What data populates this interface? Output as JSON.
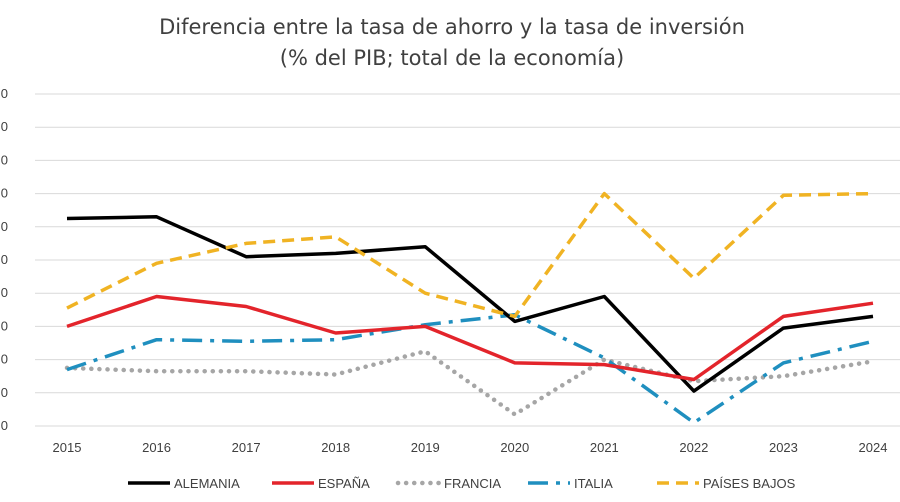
{
  "chart_data": {
    "type": "line",
    "title": "Diferencia entre la tasa de ahorro y la tasa de inversión",
    "subtitle": "(% del PIB; total de la economía)",
    "xlabel": "",
    "ylabel": "",
    "categories": [
      "2015",
      "2016",
      "2017",
      "2018",
      "2019",
      "2020",
      "2021",
      "2022",
      "2023",
      "2024"
    ],
    "y_tick_labels": [
      "0",
      "0",
      "0",
      "0",
      "0",
      "0",
      "0",
      "0",
      "0",
      "0",
      "0"
    ],
    "ylim": [
      -4,
      16
    ],
    "grid": true,
    "legend_position": "bottom",
    "series": [
      {
        "name": "ALEMANIA",
        "color": "#000000",
        "style": "solid",
        "values": [
          8.5,
          8.6,
          6.2,
          6.4,
          6.8,
          2.3,
          3.8,
          -1.9,
          1.9,
          2.6
        ]
      },
      {
        "name": "ESPAÑA",
        "color": "#e3242b",
        "style": "solid",
        "values": [
          2.0,
          3.8,
          3.2,
          1.6,
          2.0,
          -0.2,
          -0.3,
          -1.2,
          2.6,
          3.4
        ]
      },
      {
        "name": "FRANCIA",
        "color": "#a6a6a6",
        "style": "dotted",
        "values": [
          -0.5,
          -0.7,
          -0.7,
          -0.9,
          0.5,
          -3.3,
          0.0,
          -1.3,
          -1.0,
          -0.1
        ]
      },
      {
        "name": "ITALIA",
        "color": "#1f8fbf",
        "style": "dashdot",
        "values": [
          -0.6,
          1.2,
          1.1,
          1.2,
          2.1,
          2.7,
          0.1,
          -3.8,
          -0.2,
          1.1
        ]
      },
      {
        "name": "PAÍSES BAJOS",
        "color": "#f0b323",
        "style": "dashed",
        "values": [
          3.1,
          5.8,
          7.0,
          7.4,
          4.0,
          2.6,
          10.0,
          4.9,
          9.9,
          10.0
        ]
      }
    ]
  }
}
